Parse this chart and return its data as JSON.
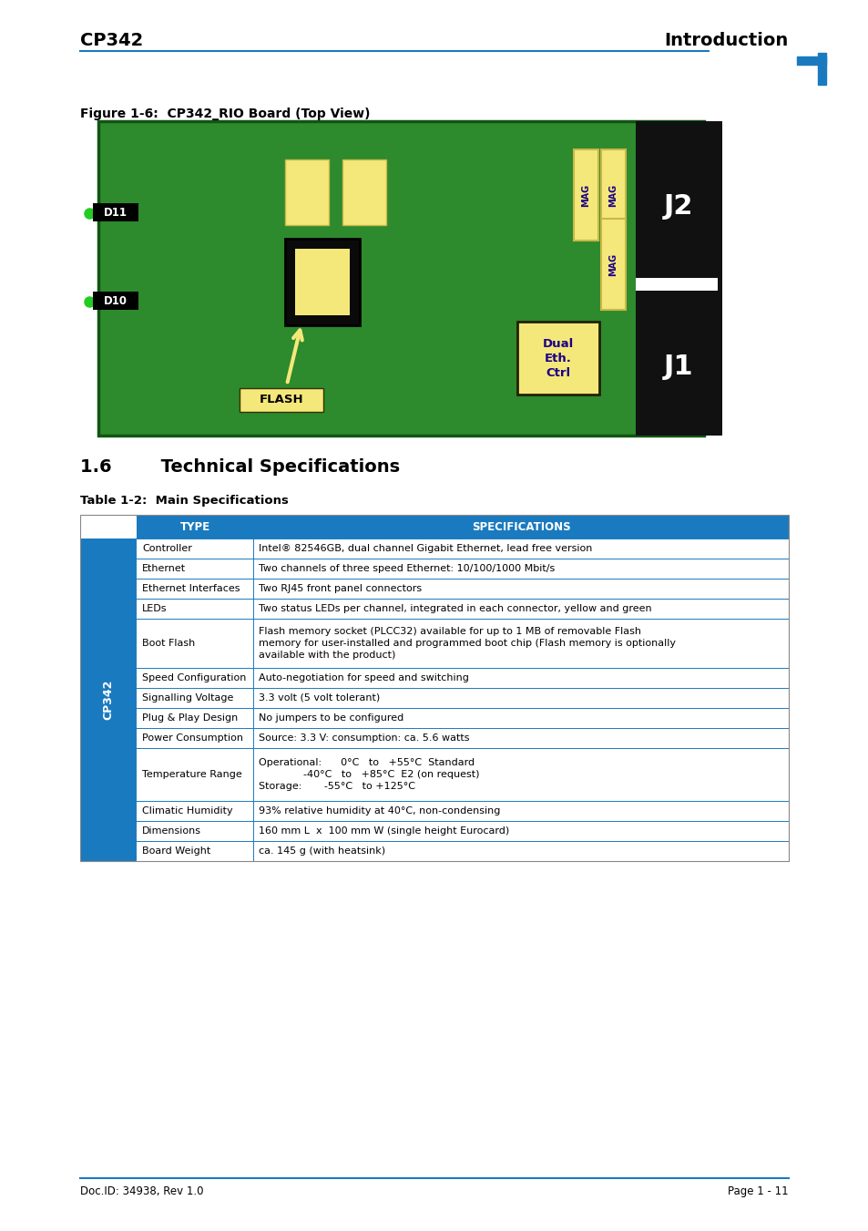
{
  "header_left": "CP342",
  "header_right": "Introduction",
  "header_line_color": "#1a7abf",
  "corner_mark_color": "#1a7abf",
  "figure_caption": "Figure 1-6:  CP342_RIO Board (Top View)",
  "board_bg": "#2d8a2d",
  "board_outline": "#1a5c1a",
  "black_panel": "#111111",
  "black_chip": "#0a0a0a",
  "cream_color": "#f5e87a",
  "cream_edge": "#c8b84a",
  "section_title": "1.6        Technical Specifications",
  "table_title": "Table 1-2:  Main Specifications",
  "table_header_bg": "#1a7abf",
  "table_header_text": "#ffffff",
  "table_row_bg1": "#ffffff",
  "table_row_bg2": "#ffffff",
  "table_border": "#aaaaaa",
  "table_border_blue": "#1a7abf",
  "cp342_sidebar_bg": "#1a7abf",
  "cp342_sidebar_text": "#ffffff",
  "footer_line_color": "#1a7abf",
  "footer_left": "Doc.ID: 34938, Rev 1.0",
  "footer_right": "Page 1 - 11",
  "rows": [
    [
      "Controller",
      "Intel® 82546GB, dual channel Gigabit Ethernet, lead free version"
    ],
    [
      "Ethernet",
      "Two channels of three speed Ethernet: 10/100/1000 Mbit/s"
    ],
    [
      "Ethernet Interfaces",
      "Two RJ45 front panel connectors"
    ],
    [
      "LEDs",
      "Two status LEDs per channel, integrated in each connector, yellow and green"
    ],
    [
      "Boot Flash",
      "Flash memory socket (PLCC32) available for up to 1 MB of removable Flash\nmemory for user-installed and programmed boot chip (Flash memory is optionally\navailable with the product)"
    ],
    [
      "Speed Configuration",
      "Auto-negotiation for speed and switching"
    ],
    [
      "Signalling Voltage",
      "3.3 volt (5 volt tolerant)"
    ],
    [
      "Plug & Play Design",
      "No jumpers to be configured"
    ],
    [
      "Power Consumption",
      "Source: 3.3 V: consumption: ca. 5.6 watts"
    ],
    [
      "Temperature Range",
      "Operational:      0°C   to   +55°C  Standard\n              -40°C   to   +85°C  E2 (on request)\nStorage:       -55°C   to +125°C"
    ],
    [
      "Climatic Humidity",
      "93% relative humidity at 40°C, non-condensing"
    ],
    [
      "Dimensions",
      "160 mm L  x  100 mm W (single height Eurocard)"
    ],
    [
      "Board Weight",
      "ca. 145 g (with heatsink)"
    ]
  ]
}
